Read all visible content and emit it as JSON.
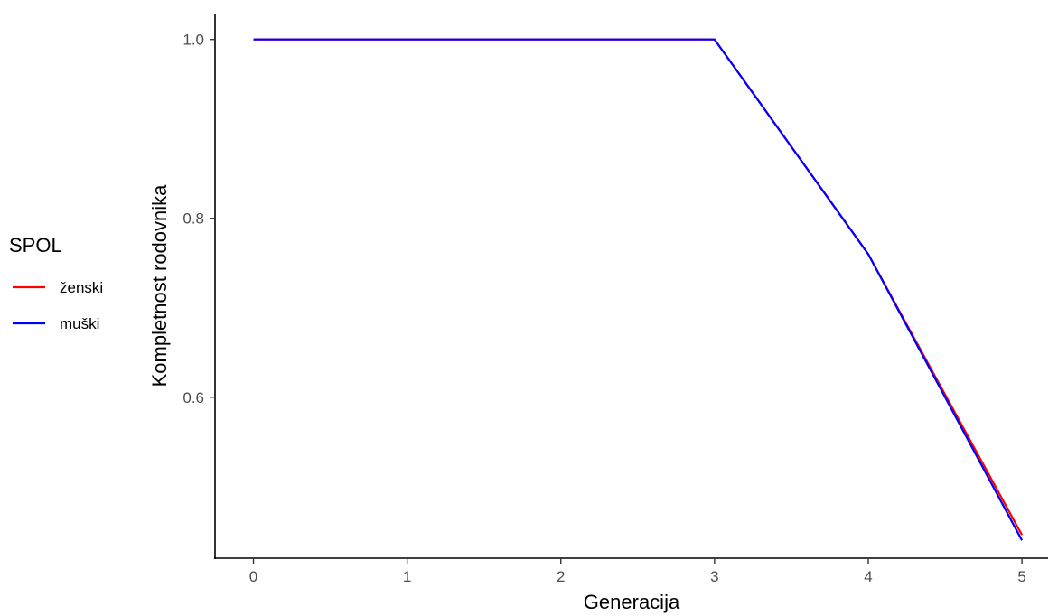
{
  "chart_data": {
    "type": "line",
    "title": "",
    "xlabel": "Generacija",
    "ylabel": "Kompletnost rodovnika",
    "x": [
      0,
      1,
      2,
      3,
      4,
      5
    ],
    "xticks": [
      "0",
      "1",
      "2",
      "3",
      "4",
      "5"
    ],
    "yticks": [
      "0.6",
      "0.8",
      "1.0"
    ],
    "xlim": [
      -0.25,
      5.17
    ],
    "ylim": [
      0.42,
      1.029
    ],
    "grid": false,
    "legend": {
      "title": "SPOL",
      "placement": "left"
    },
    "series": [
      {
        "name": "ženski",
        "color": "#ff0000",
        "values": [
          1.0,
          1.0,
          1.0,
          1.0,
          0.76,
          0.446
        ]
      },
      {
        "name": "muški",
        "color": "#0000ff",
        "values": [
          1.0,
          1.0,
          1.0,
          1.0,
          0.76,
          0.44
        ]
      }
    ]
  }
}
